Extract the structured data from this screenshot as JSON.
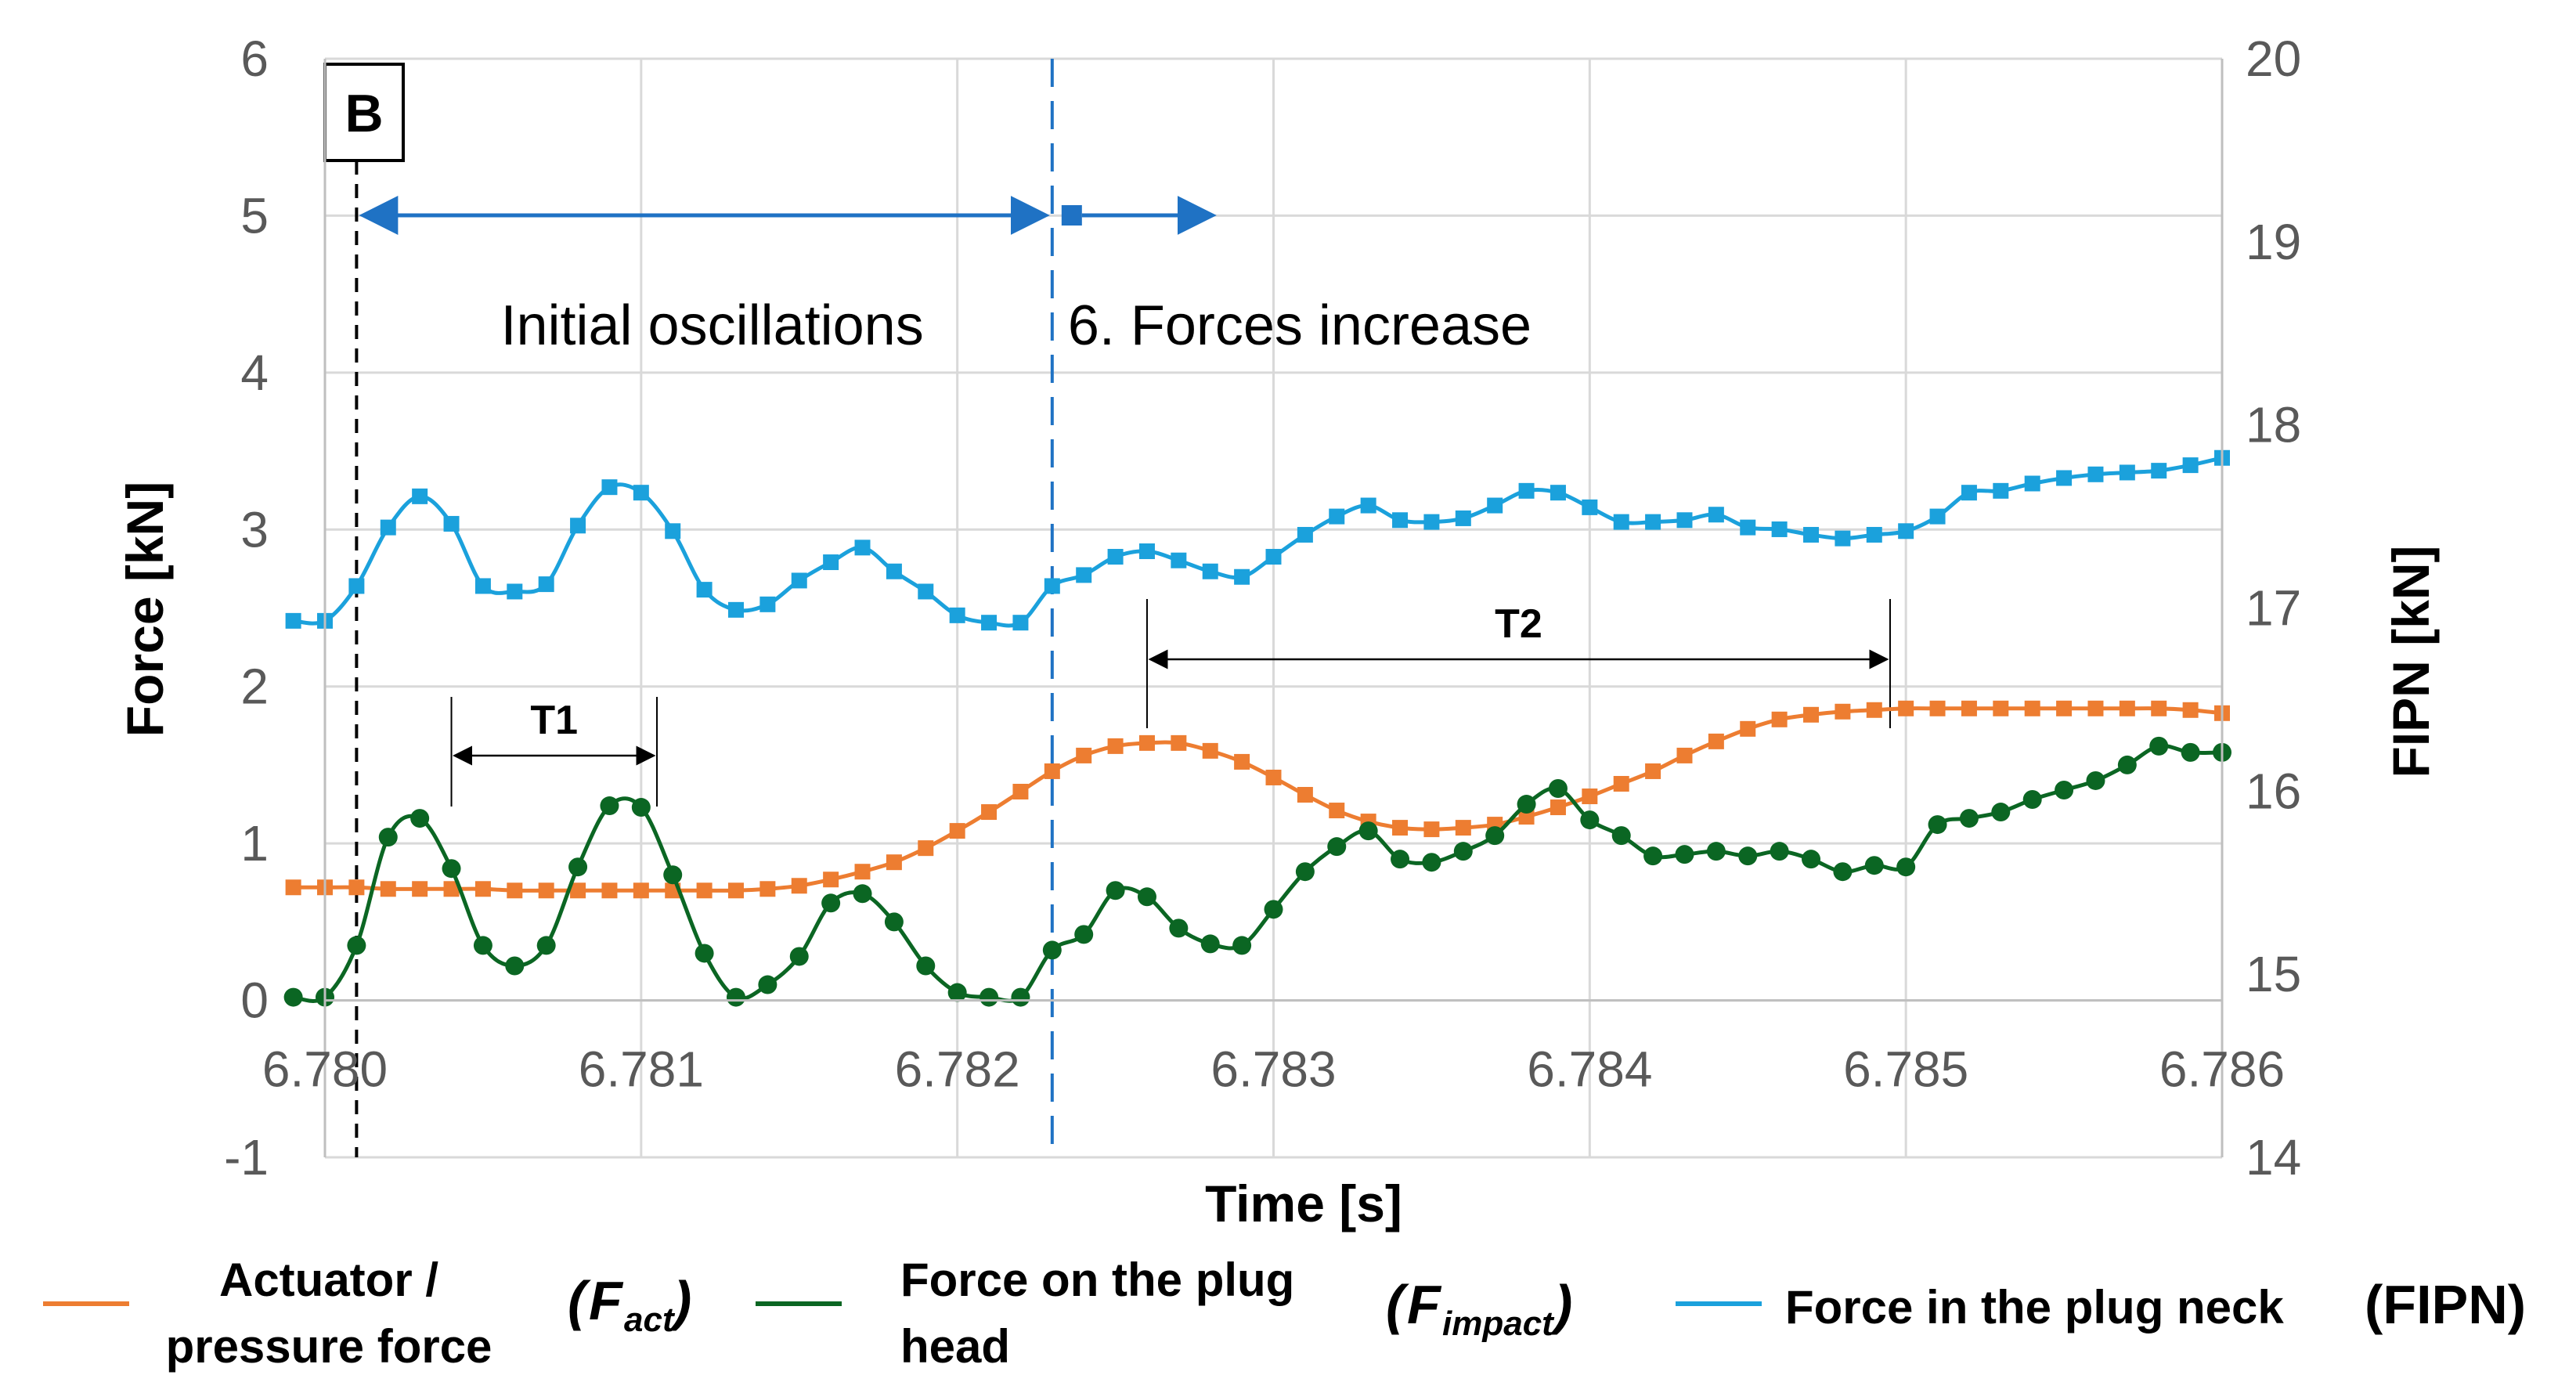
{
  "chart_data": {
    "type": "line",
    "xlabel": "Time [s]",
    "ylabel": "Force [kN]",
    "y2label": "FIPN [kN]",
    "xlim": [
      6.78,
      6.786
    ],
    "ylim": [
      -1,
      6
    ],
    "y2lim": [
      14,
      20
    ],
    "x_ticks": [
      "6.780",
      "6.781",
      "6.782",
      "6.783",
      "6.784",
      "6.785",
      "6.786"
    ],
    "y_ticks": [
      "-1",
      "0",
      "1",
      "2",
      "3",
      "4",
      "5",
      "6"
    ],
    "y2_ticks": [
      "14",
      "15",
      "16",
      "17",
      "18",
      "19",
      "20"
    ],
    "grid": true,
    "legend_position": "bottom",
    "colors": {
      "actuator": "#ED7D31",
      "impact": "#0B6623",
      "fipn": "#1BA1DC",
      "region": "#1F72C4"
    },
    "annotations": {
      "box_label": "B",
      "phase1": "Initial oscillations",
      "phase2": "6. Forces increase",
      "period1": "T1",
      "period2": "T2",
      "start_time": 6.7801,
      "boundary_time": 6.7823,
      "t1_start": 6.7804,
      "t1_end": 6.78105,
      "t2_start": 6.7826,
      "t2_end": 6.78495
    },
    "legend": [
      {
        "line1": "Actuator /",
        "line2": "pressure force",
        "symbol": "F",
        "sub": "act"
      },
      {
        "line1": "Force on the plug",
        "line2": "head",
        "symbol": "F",
        "sub": "impact"
      },
      {
        "line1": "Force in the plug neck",
        "line2": "",
        "symbol": "(FIPN)",
        "sub": ""
      }
    ],
    "series": [
      {
        "key": "actuator",
        "axis": "left",
        "marker": "square",
        "x": [
          6.7799,
          6.78,
          6.7801,
          6.7802,
          6.7803,
          6.7804,
          6.7805,
          6.7806,
          6.7807,
          6.7808,
          6.7809,
          6.781,
          6.7811,
          6.7812,
          6.7813,
          6.7814,
          6.7815,
          6.7816,
          6.7817,
          6.7818,
          6.7819,
          6.782,
          6.7821,
          6.7822,
          6.7823,
          6.7824,
          6.7825,
          6.7826,
          6.7827,
          6.7828,
          6.7829,
          6.783,
          6.7831,
          6.7832,
          6.7833,
          6.7834,
          6.7835,
          6.7836,
          6.7837,
          6.7838,
          6.7839,
          6.784,
          6.7841,
          6.7842,
          6.7843,
          6.7844,
          6.7845,
          6.7846,
          6.7847,
          6.7848,
          6.7849,
          6.785,
          6.7851,
          6.7852,
          6.7853,
          6.7854,
          6.7855,
          6.7856,
          6.7857,
          6.7858,
          6.7859,
          6.786
        ],
        "y": [
          0.72,
          0.72,
          0.72,
          0.71,
          0.71,
          0.71,
          0.71,
          0.7,
          0.7,
          0.7,
          0.7,
          0.7,
          0.7,
          0.7,
          0.7,
          0.71,
          0.73,
          0.77,
          0.82,
          0.88,
          0.97,
          1.08,
          1.2,
          1.33,
          1.46,
          1.56,
          1.62,
          1.64,
          1.64,
          1.59,
          1.52,
          1.42,
          1.31,
          1.21,
          1.14,
          1.1,
          1.09,
          1.1,
          1.12,
          1.17,
          1.23,
          1.3,
          1.38,
          1.46,
          1.56,
          1.65,
          1.73,
          1.79,
          1.82,
          1.84,
          1.85,
          1.86,
          1.86,
          1.86,
          1.86,
          1.86,
          1.86,
          1.86,
          1.86,
          1.86,
          1.85,
          1.83
        ]
      },
      {
        "key": "impact",
        "axis": "left",
        "marker": "circle",
        "x": [
          6.7799,
          6.78,
          6.7801,
          6.7802,
          6.7803,
          6.7804,
          6.7805,
          6.7806,
          6.7807,
          6.7808,
          6.7809,
          6.781,
          6.7811,
          6.7812,
          6.7813,
          6.7814,
          6.7815,
          6.7816,
          6.7817,
          6.7818,
          6.7819,
          6.782,
          6.7821,
          6.7822,
          6.7823,
          6.7824,
          6.7825,
          6.7826,
          6.7827,
          6.7828,
          6.7829,
          6.783,
          6.7831,
          6.7832,
          6.7833,
          6.7834,
          6.7835,
          6.7836,
          6.7837,
          6.7838,
          6.7839,
          6.784,
          6.7841,
          6.7842,
          6.7843,
          6.7844,
          6.7845,
          6.7846,
          6.7847,
          6.7848,
          6.7849,
          6.785,
          6.7851,
          6.7852,
          6.7853,
          6.7854,
          6.7855,
          6.7856,
          6.7857,
          6.7858,
          6.7859,
          6.786
        ],
        "y": [
          0.02,
          0.02,
          0.35,
          1.04,
          1.16,
          0.84,
          0.35,
          0.22,
          0.35,
          0.85,
          1.24,
          1.23,
          0.8,
          0.3,
          0.02,
          0.1,
          0.28,
          0.62,
          0.68,
          0.5,
          0.22,
          0.05,
          0.02,
          0.02,
          0.32,
          0.42,
          0.7,
          0.66,
          0.46,
          0.36,
          0.35,
          0.58,
          0.82,
          0.98,
          1.08,
          0.9,
          0.88,
          0.95,
          1.05,
          1.25,
          1.35,
          1.15,
          1.05,
          0.92,
          0.93,
          0.95,
          0.92,
          0.95,
          0.9,
          0.82,
          0.86,
          0.85,
          1.12,
          1.16,
          1.2,
          1.28,
          1.34,
          1.4,
          1.5,
          1.62,
          1.58,
          1.58
        ]
      },
      {
        "key": "fipn",
        "axis": "right",
        "marker": "square",
        "x": [
          6.7799,
          6.78,
          6.7801,
          6.7802,
          6.7803,
          6.7804,
          6.7805,
          6.7806,
          6.7807,
          6.7808,
          6.7809,
          6.781,
          6.7811,
          6.7812,
          6.7813,
          6.7814,
          6.7815,
          6.7816,
          6.7817,
          6.7818,
          6.7819,
          6.782,
          6.7821,
          6.7822,
          6.7823,
          6.7824,
          6.7825,
          6.7826,
          6.7827,
          6.7828,
          6.7829,
          6.783,
          6.7831,
          6.7832,
          6.7833,
          6.7834,
          6.7835,
          6.7836,
          6.7837,
          6.7838,
          6.7839,
          6.784,
          6.7841,
          6.7842,
          6.7843,
          6.7844,
          6.7845,
          6.7846,
          6.7847,
          6.7848,
          6.7849,
          6.785,
          6.7851,
          6.7852,
          6.7853,
          6.7854,
          6.7855,
          6.7856,
          6.7857,
          6.7858,
          6.7859,
          6.786
        ],
        "y": [
          16.93,
          16.93,
          17.12,
          17.44,
          17.61,
          17.46,
          17.12,
          17.09,
          17.13,
          17.45,
          17.66,
          17.63,
          17.42,
          17.1,
          16.99,
          17.02,
          17.15,
          17.25,
          17.33,
          17.2,
          17.09,
          16.96,
          16.92,
          16.92,
          17.12,
          17.18,
          17.28,
          17.31,
          17.26,
          17.2,
          17.17,
          17.28,
          17.4,
          17.5,
          17.56,
          17.48,
          17.47,
          17.49,
          17.56,
          17.64,
          17.63,
          17.55,
          17.47,
          17.47,
          17.48,
          17.51,
          17.44,
          17.43,
          17.4,
          17.38,
          17.4,
          17.42,
          17.5,
          17.63,
          17.64,
          17.68,
          17.71,
          17.73,
          17.74,
          17.75,
          17.78,
          17.82
        ]
      }
    ]
  }
}
